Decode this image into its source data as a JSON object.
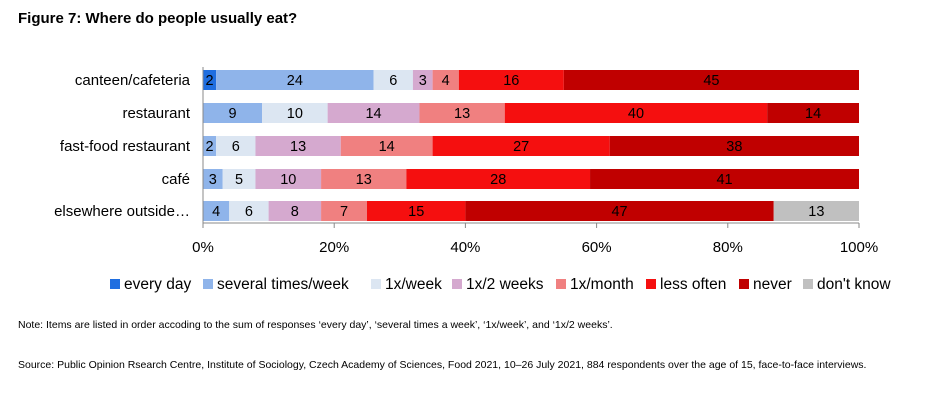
{
  "title": "Figure 7: Where do people usually eat?",
  "note": "Note: Items are listed in order accoding to the sum of responses ‘every day’, ‘several times a week’, ‘1x/week’, and ‘1x/2 weeks’.",
  "source": "Source: Public Opinion Rsearch Centre, Institute of Sociology, Czech Academy of Sciences, Food 2021, 10–26 July 2021, 884 respondents over the age of 15, face-to-face interviews.",
  "chart_data": {
    "type": "bar",
    "orientation": "horizontal",
    "stacked": "percent",
    "categories": [
      "canteen/cafeteria",
      "restaurant",
      "fast-food restaurant",
      "café",
      "elsewhere outside…"
    ],
    "xlim": [
      0,
      100
    ],
    "xticks": [
      "0%",
      "20%",
      "40%",
      "60%",
      "80%",
      "100%"
    ],
    "grid": false,
    "legend_position": "bottom",
    "series": [
      {
        "name": "every day",
        "color": "#1f6ee0",
        "values": [
          2,
          0,
          0,
          0,
          0
        ]
      },
      {
        "name": "several times/week",
        "color": "#8fb4ea",
        "values": [
          24,
          9,
          2,
          3,
          4
        ]
      },
      {
        "name": "1x/week",
        "color": "#dce6f2",
        "values": [
          6,
          10,
          6,
          5,
          6
        ]
      },
      {
        "name": "1x/2 weeks",
        "color": "#d5a9cf",
        "values": [
          3,
          14,
          13,
          10,
          8
        ]
      },
      {
        "name": "1x/month",
        "color": "#f08080",
        "values": [
          4,
          13,
          14,
          13,
          7
        ]
      },
      {
        "name": "less often",
        "color": "#f50f0f",
        "values": [
          16,
          40,
          27,
          28,
          15
        ]
      },
      {
        "name": "never",
        "color": "#c00000",
        "values": [
          45,
          14,
          38,
          41,
          47
        ]
      },
      {
        "name": "don't know",
        "color": "#c0c0c0",
        "values": [
          0,
          0,
          0,
          0,
          13
        ]
      }
    ]
  }
}
